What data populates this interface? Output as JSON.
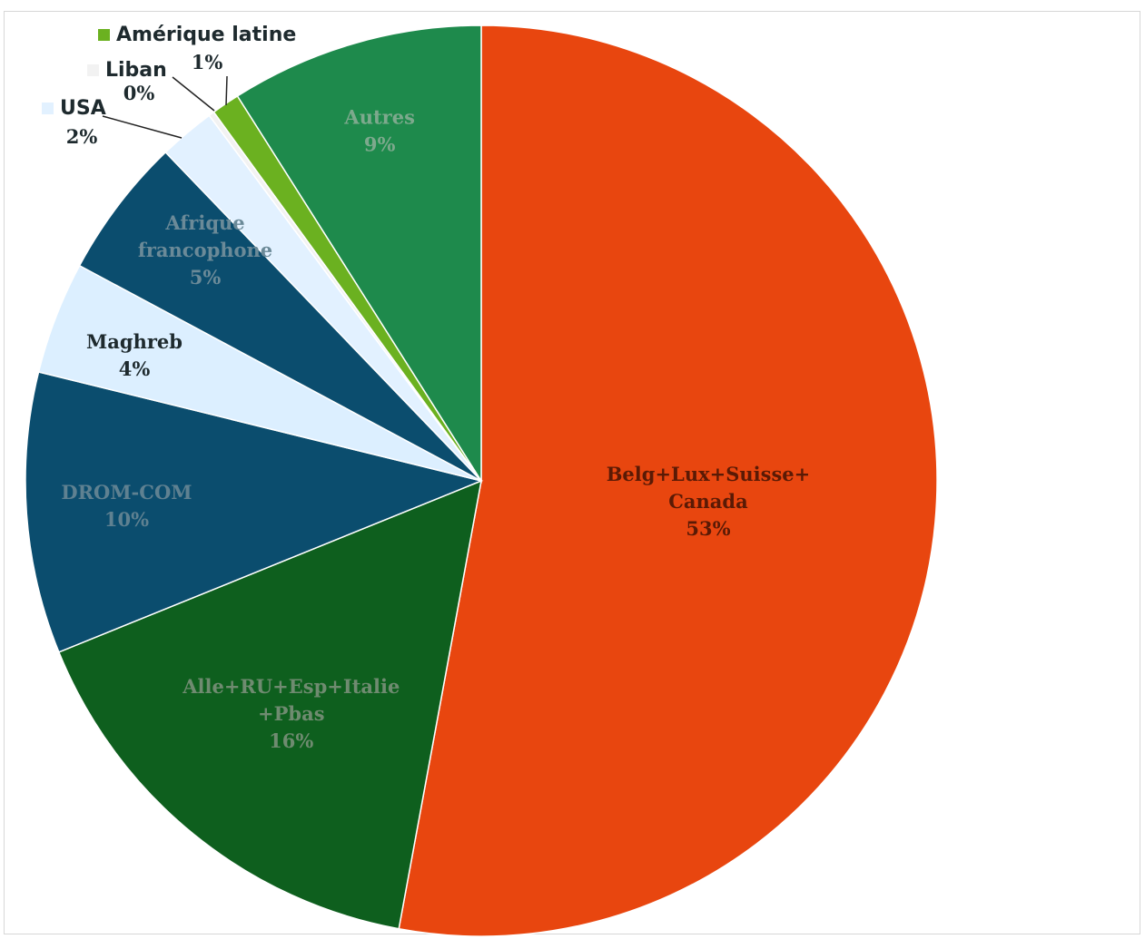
{
  "chart_data": {
    "type": "pie",
    "start_angle_deg": 0,
    "direction": "clockwise",
    "slices": [
      {
        "name": "Belg+Lux+Suisse+ Canada",
        "value": 53,
        "label_lines": [
          "Belg+Lux+Suisse+",
          "Canada"
        ],
        "pct_label": "53%",
        "color": "#e8460f",
        "text_color": "#5a1a05"
      },
      {
        "name": "Alle+RU+Esp+Italie +Pbas",
        "value": 16,
        "label_lines": [
          "Alle+RU+Esp+Italie",
          "+Pbas"
        ],
        "pct_label": "16%",
        "color": "#0e5f1e",
        "text_color": "#6f8b70"
      },
      {
        "name": "DROM-COM",
        "value": 10,
        "label_lines": [
          "DROM-COM"
        ],
        "pct_label": "10%",
        "color": "#0b4d6e",
        "text_color": "#5f8191"
      },
      {
        "name": "Maghreb",
        "value": 4,
        "label_lines": [
          "Maghreb"
        ],
        "pct_label": "4%",
        "color": "#dcefff",
        "text_color": "#1e2a2e"
      },
      {
        "name": "Afrique francophone",
        "value": 5,
        "label_lines": [
          "Afrique",
          "francophone"
        ],
        "pct_label": "5%",
        "color": "#0b4d6e",
        "text_color": "#6b8a98"
      },
      {
        "name": "USA",
        "value": 2,
        "label_lines": [
          "USA"
        ],
        "pct_label": "2%",
        "color": "#e2f1ff",
        "text_color": "#1e2a2e"
      },
      {
        "name": "Liban",
        "value": 0.2,
        "label_lines": [
          "Liban"
        ],
        "pct_label": "0%",
        "color": "#f2f2f2",
        "text_color": "#1e2a2e"
      },
      {
        "name": "Amérique latine",
        "value": 1,
        "label_lines": [
          "Amérique latine"
        ],
        "pct_label": "1%",
        "color": "#6bb120",
        "text_color": "#1e2a2e"
      },
      {
        "name": "Autres",
        "value": 9,
        "label_lines": [
          "Autres"
        ],
        "pct_label": "9%",
        "color": "#1e8a4c",
        "text_color": "#7da98d"
      }
    ]
  }
}
